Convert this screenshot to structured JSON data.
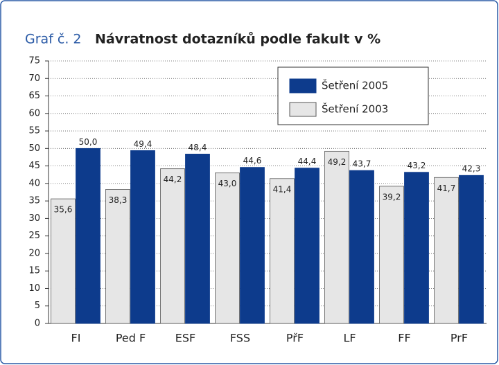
{
  "chart_data": {
    "type": "bar",
    "label": "Graf č. 2",
    "title": "Návratnost dotazníků podle fakult v %",
    "categories": [
      "FI",
      "Ped F",
      "ESF",
      "FSS",
      "PřF",
      "LF",
      "FF",
      "PrF"
    ],
    "series": [
      {
        "name": "Šetření 2003",
        "color": "#e6e6e6",
        "values": [
          35.6,
          38.3,
          44.2,
          43.0,
          41.4,
          49.2,
          39.2,
          41.7
        ],
        "value_labels": [
          "35,6",
          "38,3",
          "44,2",
          "43,0",
          "41,4",
          "49,2",
          "39,2",
          "41,7"
        ]
      },
      {
        "name": "Šetření 2005",
        "color": "#0d3b8c",
        "values": [
          50.0,
          49.4,
          48.4,
          44.6,
          44.4,
          43.7,
          43.2,
          42.3
        ],
        "value_labels": [
          "50,0",
          "49,4",
          "48,4",
          "44,6",
          "44,4",
          "43,7",
          "43,2",
          "42,3"
        ]
      }
    ],
    "ylim": [
      0,
      75
    ],
    "yticks": [
      0,
      5,
      10,
      15,
      20,
      25,
      30,
      35,
      40,
      45,
      50,
      55,
      60,
      65,
      70,
      75
    ],
    "grid": true
  }
}
